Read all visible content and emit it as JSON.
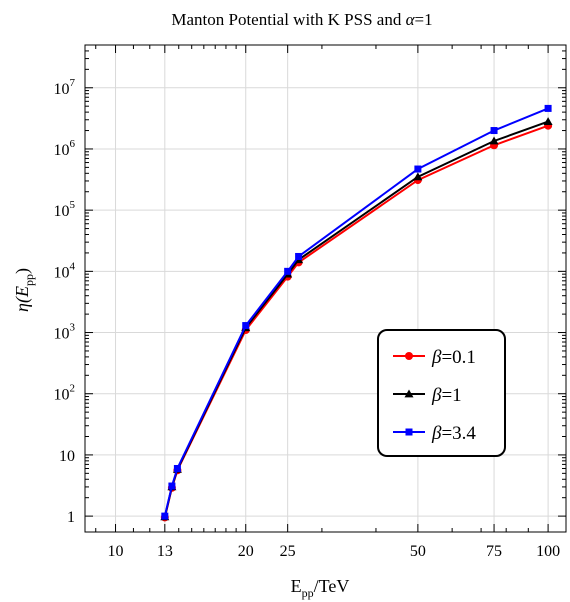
{
  "chart_data": {
    "type": "line",
    "title": "Manton Potential with K PSS and α=1",
    "title_main": "Manton Potential with K PSS and ",
    "title_alpha": "α",
    "title_tail": "=1",
    "xlabel": {
      "base": "E",
      "sub": "pp",
      "tail": "/TeV"
    },
    "ylabel": {
      "pre": "η(E",
      "sub": "pp",
      "post": ")"
    },
    "x_scale": "log",
    "y_scale": "log",
    "xlim": [
      8.5,
      110
    ],
    "ylim": [
      0.55,
      50000000
    ],
    "grid": true,
    "legend_position": "center-right",
    "x_ticks": [
      {
        "value": 10,
        "label": "10"
      },
      {
        "value": 13,
        "label": "13"
      },
      {
        "value": 20,
        "label": "20"
      },
      {
        "value": 25,
        "label": "25"
      },
      {
        "value": 50,
        "label": "50"
      },
      {
        "value": 75,
        "label": "75"
      },
      {
        "value": 100,
        "label": "100"
      }
    ],
    "y_ticks": [
      {
        "value": 1,
        "label": "1",
        "exp": ""
      },
      {
        "value": 10,
        "label": "10",
        "exp": ""
      },
      {
        "value": 100,
        "label": "10",
        "exp": "2"
      },
      {
        "value": 1000,
        "label": "10",
        "exp": "3"
      },
      {
        "value": 10000,
        "label": "10",
        "exp": "4"
      },
      {
        "value": 100000,
        "label": "10",
        "exp": "5"
      },
      {
        "value": 1000000,
        "label": "10",
        "exp": "6"
      },
      {
        "value": 10000000,
        "label": "10",
        "exp": "7"
      }
    ],
    "series": [
      {
        "name": "β=0.1",
        "legend_symbol": "β",
        "legend_value": "=0.1",
        "color": "#ff0000",
        "marker": "circle",
        "x": [
          13,
          13.5,
          13.9,
          20,
          25,
          26.5,
          50,
          75,
          100
        ],
        "y": [
          0.95,
          2.9,
          5.6,
          1100,
          8200,
          14000,
          310000,
          1150000,
          2400000
        ]
      },
      {
        "name": "β=1",
        "legend_symbol": "β",
        "legend_value": "=1",
        "color": "#000000",
        "marker": "triangle",
        "x": [
          13,
          13.5,
          13.9,
          20,
          25,
          26.5,
          50,
          75,
          100
        ],
        "y": [
          0.97,
          3.0,
          5.8,
          1200,
          9000,
          15500,
          350000,
          1350000,
          2800000
        ]
      },
      {
        "name": "β=3.4",
        "legend_symbol": "β",
        "legend_value": "=3.4",
        "color": "#0000ff",
        "marker": "square",
        "x": [
          13,
          13.5,
          13.9,
          20,
          25,
          26.5,
          50,
          75,
          100
        ],
        "y": [
          1.0,
          3.1,
          6.0,
          1300,
          10000,
          17500,
          470000,
          2000000,
          4600000
        ]
      }
    ]
  }
}
